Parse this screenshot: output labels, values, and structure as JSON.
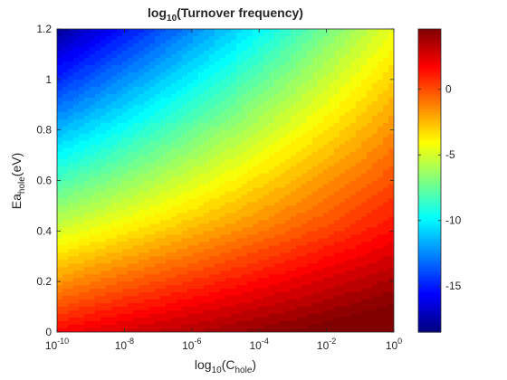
{
  "chart_data": {
    "type": "heatmap",
    "title": {
      "main": "log",
      "sub": "10",
      "tail": "(Turnover frequency)"
    },
    "xlabel": {
      "main": "log",
      "sub1": "10",
      "mid": "(C",
      "sub2": "hole",
      "tail": ")"
    },
    "ylabel": {
      "main": "Ea",
      "sub": "hole",
      "tail": "(eV)"
    },
    "x_scale": "log",
    "xlim": [
      1e-10,
      1
    ],
    "ylim": [
      0,
      1.2
    ],
    "x_ticks": [
      {
        "value": -10,
        "base": "10",
        "exp": "-10"
      },
      {
        "value": -8,
        "base": "10",
        "exp": "-8"
      },
      {
        "value": -6,
        "base": "10",
        "exp": "-6"
      },
      {
        "value": -4,
        "base": "10",
        "exp": "-4"
      },
      {
        "value": -2,
        "base": "10",
        "exp": "-2"
      },
      {
        "value": 0,
        "base": "10",
        "exp": "0"
      }
    ],
    "y_ticks": [
      {
        "value": 0,
        "label": "0"
      },
      {
        "value": 0.2,
        "label": "0.2"
      },
      {
        "value": 0.4,
        "label": "0.4"
      },
      {
        "value": 0.6,
        "label": "0.6"
      },
      {
        "value": 0.8,
        "label": "0.8"
      },
      {
        "value": 1.0,
        "label": "1"
      },
      {
        "value": 1.2,
        "label": "1.2"
      }
    ],
    "colorbar": {
      "colormap": "jet",
      "range": [
        -18.5,
        4.6
      ],
      "ticks": [
        {
          "value": 0,
          "label": "0"
        },
        {
          "value": -5,
          "label": "-5"
        },
        {
          "value": -10,
          "label": "-10"
        },
        {
          "value": -15,
          "label": "-15"
        }
      ]
    },
    "field_samples": [
      {
        "c_log10": -10,
        "ea_eV": 1.2,
        "value": -18
      },
      {
        "c_log10": 0,
        "ea_eV": 1.2,
        "value": -4.5
      },
      {
        "c_log10": -10,
        "ea_eV": 0.0,
        "value": 1.5
      },
      {
        "c_log10": 0,
        "ea_eV": 0.0,
        "value": 4.5
      }
    ],
    "grid": false,
    "legend": "colorbar-right"
  }
}
